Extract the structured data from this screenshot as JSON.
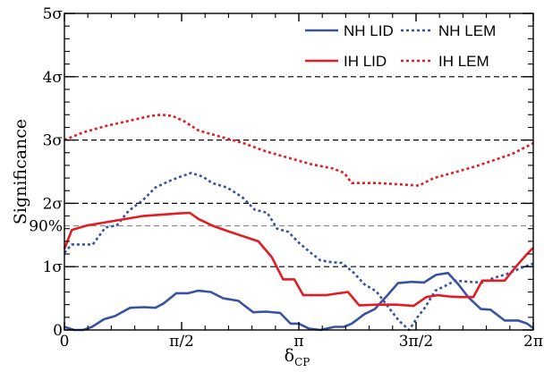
{
  "chart_data": {
    "type": "line",
    "xlabel": "δ",
    "xlabel_subscript": "CP",
    "ylabel": "Significance",
    "xlim": [
      0,
      6.2832
    ],
    "ylim": [
      0,
      5
    ],
    "x_ticks": [
      {
        "value": 0,
        "label": "0"
      },
      {
        "value": 1.5708,
        "label": "π/2"
      },
      {
        "value": 3.1416,
        "label": "π"
      },
      {
        "value": 4.7124,
        "label": "3π/2"
      },
      {
        "value": 6.2832,
        "label": "2π"
      }
    ],
    "y_ticks": [
      {
        "value": 0,
        "label": "0"
      },
      {
        "value": 1,
        "label": "1σ"
      },
      {
        "value": 2,
        "label": "2σ"
      },
      {
        "value": 3,
        "label": "3σ"
      },
      {
        "value": 4,
        "label": "4σ"
      },
      {
        "value": 5,
        "label": "5σ"
      }
    ],
    "grid": {
      "horizontal_dashed_at": [
        1,
        2,
        3,
        4
      ],
      "color": "#000000"
    },
    "reference_line": {
      "value": 1.645,
      "label": "90%",
      "color": "#8c8c8c"
    },
    "legend_placement": "top-right",
    "series": [
      {
        "name": "NH LID",
        "color": "#3953a4",
        "dash": "solid",
        "x": [
          0,
          0.13,
          0.25,
          0.37,
          0.53,
          0.68,
          0.88,
          1.07,
          1.22,
          1.33,
          1.5,
          1.66,
          1.79,
          1.96,
          2.13,
          2.33,
          2.53,
          2.7,
          2.89,
          3.03,
          3.14,
          3.28,
          3.43,
          3.62,
          3.75,
          3.85,
          4.02,
          4.16,
          4.33,
          4.47,
          4.65,
          4.82,
          4.98,
          5.14,
          5.28,
          5.41,
          5.58,
          5.71,
          5.9,
          6.08,
          6.2,
          6.2832
        ],
        "y": [
          0.05,
          0.0,
          0.0,
          0.05,
          0.17,
          0.22,
          0.35,
          0.36,
          0.35,
          0.42,
          0.58,
          0.58,
          0.62,
          0.6,
          0.5,
          0.46,
          0.28,
          0.29,
          0.27,
          0.1,
          0.1,
          0.02,
          0.0,
          0.05,
          0.05,
          0.1,
          0.25,
          0.33,
          0.55,
          0.74,
          0.76,
          0.75,
          0.87,
          0.9,
          0.72,
          0.52,
          0.33,
          0.32,
          0.15,
          0.15,
          0.1,
          0.03
        ]
      },
      {
        "name": "NH LEM",
        "color": "#3953a4",
        "dash": "dotted",
        "x": [
          0,
          0.1,
          0.38,
          0.55,
          0.7,
          0.86,
          1.05,
          1.22,
          1.4,
          1.55,
          1.7,
          1.86,
          1.98,
          2.18,
          2.38,
          2.55,
          2.72,
          2.85,
          3.0,
          3.14,
          3.3,
          3.43,
          3.58,
          3.72,
          3.88,
          4.02,
          4.18,
          4.33,
          4.48,
          4.62,
          4.73,
          4.83,
          4.97,
          5.11,
          5.24,
          5.43,
          5.6,
          5.75,
          5.92,
          6.08,
          6.2832
        ],
        "y": [
          1.22,
          1.35,
          1.35,
          1.62,
          1.65,
          1.88,
          2.05,
          2.25,
          2.35,
          2.42,
          2.48,
          2.42,
          2.32,
          2.25,
          2.1,
          1.9,
          1.85,
          1.6,
          1.55,
          1.38,
          1.22,
          1.1,
          1.07,
          1.06,
          0.9,
          0.72,
          0.61,
          0.38,
          0.15,
          0.0,
          0.2,
          0.35,
          0.62,
          0.7,
          0.78,
          0.76,
          0.75,
          0.82,
          0.88,
          0.96,
          1.05
        ]
      },
      {
        "name": "IH LID",
        "color": "#e31b23",
        "dash": "solid",
        "x": [
          0,
          0.1,
          0.3,
          0.55,
          0.8,
          1.05,
          1.3,
          1.52,
          1.68,
          1.8,
          2.0,
          2.22,
          2.42,
          2.6,
          2.78,
          2.93,
          3.08,
          3.2,
          3.5,
          3.8,
          3.95,
          4.2,
          4.45,
          4.68,
          4.85,
          5.0,
          5.15,
          5.3,
          5.48,
          5.6,
          5.75,
          5.9,
          6.05,
          6.2,
          6.2832
        ],
        "y": [
          1.28,
          1.58,
          1.65,
          1.7,
          1.75,
          1.8,
          1.82,
          1.84,
          1.85,
          1.75,
          1.64,
          1.55,
          1.47,
          1.4,
          1.15,
          0.8,
          0.8,
          0.55,
          0.55,
          0.6,
          0.39,
          0.4,
          0.4,
          0.38,
          0.52,
          0.55,
          0.53,
          0.52,
          0.52,
          0.78,
          0.78,
          0.78,
          1.0,
          1.2,
          1.3
        ]
      },
      {
        "name": "IH LEM",
        "color": "#e31b23",
        "dash": "dotted",
        "x": [
          0,
          0.25,
          0.55,
          0.85,
          1.15,
          1.3,
          1.45,
          1.6,
          1.8,
          2.1,
          2.4,
          2.7,
          3.0,
          3.3,
          3.6,
          3.75,
          3.85,
          4.2,
          4.5,
          4.75,
          4.95,
          5.2,
          5.5,
          5.75,
          6.0,
          6.2832
        ],
        "y": [
          3.0,
          3.12,
          3.22,
          3.3,
          3.38,
          3.4,
          3.38,
          3.3,
          3.15,
          3.05,
          2.95,
          2.82,
          2.72,
          2.62,
          2.55,
          2.48,
          2.32,
          2.32,
          2.3,
          2.28,
          2.4,
          2.48,
          2.58,
          2.68,
          2.78,
          2.95
        ]
      }
    ]
  }
}
